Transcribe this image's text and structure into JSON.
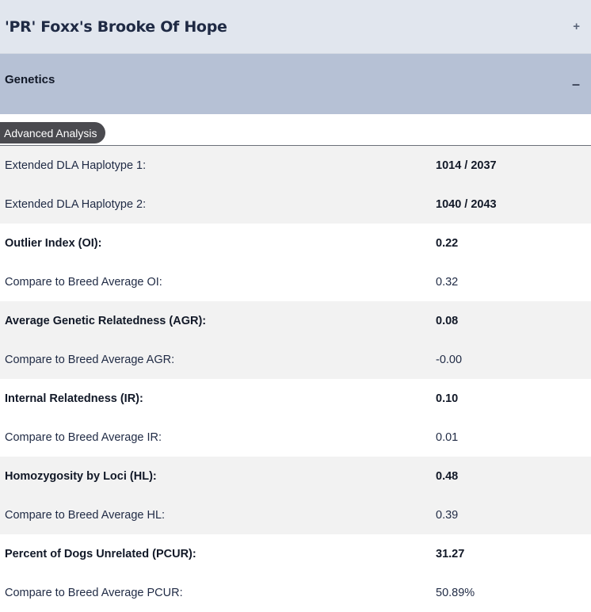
{
  "panel": {
    "title": "'PR' Foxx's Brooke Of Hope",
    "toggle": "+"
  },
  "section": {
    "title": "Genetics",
    "toggle": "–"
  },
  "tab": {
    "label": "Advanced Analysis"
  },
  "rows": [
    {
      "label": "Extended DLA Haplotype 1:",
      "value": "1014 / 2037"
    },
    {
      "label": "Extended DLA Haplotype 2:",
      "value": "1040 / 2043"
    },
    {
      "label": "Outlier Index (OI):",
      "value": "0.22"
    },
    {
      "label": "Compare to Breed Average OI:",
      "value": "0.32"
    },
    {
      "label": "Average Genetic Relatedness (AGR):",
      "value": "0.08"
    },
    {
      "label": "Compare to Breed Average AGR:",
      "value": "-0.00"
    },
    {
      "label": "Internal Relatedness (IR):",
      "value": "0.10"
    },
    {
      "label": "Compare to Breed Average IR:",
      "value": "0.01"
    },
    {
      "label": "Homozygosity by Loci (HL):",
      "value": "0.48"
    },
    {
      "label": "Compare to Breed Average HL:",
      "value": "0.39"
    },
    {
      "label": "Percent of Dogs Unrelated (PCUR):",
      "value": "31.27"
    },
    {
      "label": "Compare to Breed Average PCUR:",
      "value": "50.89%"
    }
  ]
}
